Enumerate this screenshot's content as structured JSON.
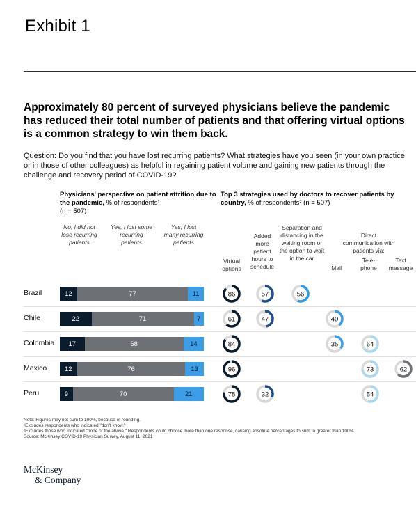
{
  "exhibit": "Exhibit 1",
  "headline": "Approximately 80 percent of surveyed physicians believe the pandemic has reduced their total number of patients and that offering virtual options is a common strategy to win them back.",
  "question": "Question: Do you find that you have lost recurring patients? What strategies have you seen (in your own practice or in those of other colleagues) as helpful in regaining patient volume and gaining new patients through the challenge and recovery period of COVID-19?",
  "chart_data": [
    {
      "type": "bar",
      "stacked": true,
      "orientation": "horizontal",
      "title": "Physicians' perspective on patient attrition due to the pandemic,",
      "title_unit": "% of respondents¹",
      "n_label": "(n = 507)",
      "categories": [
        "Brazil",
        "Chile",
        "Colombia",
        "Mexico",
        "Peru"
      ],
      "series": [
        {
          "name": "No, I did not lose recurring patients",
          "values": [
            12,
            22,
            17,
            12,
            9
          ],
          "color": "#0b1c2e"
        },
        {
          "name": "Yes, I lost some recurring patients",
          "values": [
            77,
            71,
            68,
            76,
            70
          ],
          "color": "#6d7075"
        },
        {
          "name": "Yes, I lost many recurring patients",
          "values": [
            11,
            7,
            14,
            13,
            21
          ],
          "color": "#3d9ee8"
        }
      ]
    },
    {
      "type": "table",
      "title": "Top 3 strategies used by doctors to recover patients by country,",
      "title_unit": "% of respondents² (n = 507)",
      "group_header": "Direct communication with patients via:",
      "columns": [
        {
          "label": "Virtual options",
          "color": "#0b1c2e"
        },
        {
          "label": "Added more patient hours to schedule",
          "color": "#1f4e8c"
        },
        {
          "label": "Separation and distancing in the waiting room or the option to wait in the car",
          "color": "#2a9be8"
        },
        {
          "label": "Mail",
          "color": "#3d9ee8"
        },
        {
          "label": "Tele-phone",
          "color": "#a9d9ef"
        },
        {
          "label": "Text message",
          "color": "#6d7075"
        }
      ],
      "rows": [
        {
          "country": "Brazil",
          "values": [
            86,
            57,
            56,
            null,
            null,
            null
          ]
        },
        {
          "country": "Chile",
          "values": [
            61,
            47,
            null,
            40,
            null,
            null
          ]
        },
        {
          "country": "Colombia",
          "values": [
            84,
            null,
            null,
            35,
            64,
            null
          ]
        },
        {
          "country": "Mexico",
          "values": [
            96,
            null,
            null,
            null,
            73,
            62
          ]
        },
        {
          "country": "Peru",
          "values": [
            78,
            32,
            null,
            null,
            54,
            null
          ]
        }
      ]
    }
  ],
  "notes": [
    "Note: Figures may not sum to 100%, because of rounding.",
    "¹Excludes respondents who indicated \"don't know.\"",
    "²Excludes those who indicated \"none of the above.\" Respondents could choose more than one response, causing absolute percentages to sum to greater than 100%.",
    "Source: McKinsey COVID-19 Physician Survey, August 11, 2021"
  ],
  "logo": [
    "McKinsey",
    "& Company"
  ]
}
